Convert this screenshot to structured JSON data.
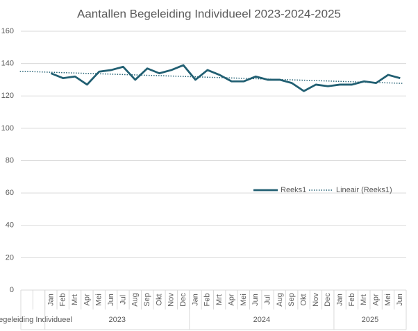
{
  "chart_data": {
    "type": "line",
    "title": "Aantallen Begeleiding Individueel 2023-2024-2025",
    "categories": [
      null,
      null,
      "Jan",
      "Feb",
      "Mrt",
      "Apr",
      "Mei",
      "Jun",
      "Jul",
      "Aug",
      "Sep",
      "Okt",
      "Nov",
      "Dec",
      "Jan",
      "Feb",
      "Mrt",
      "Apr",
      "Mei",
      "Jun",
      "Jul",
      "Aug",
      "Sep",
      "Okt",
      "Nov",
      "Dec",
      "Jan",
      "Feb",
      "Mrt",
      "Apr",
      "Mei",
      "Jun"
    ],
    "groups": [
      {
        "label": "Begeleiding Individueel",
        "count": 2
      },
      {
        "label": "2023",
        "count": 12
      },
      {
        "label": "2024",
        "count": 12
      },
      {
        "label": "2025",
        "count": 6
      }
    ],
    "series": [
      {
        "name": "Reeks1",
        "color": "#215f72",
        "values": [
          null,
          null,
          134,
          131,
          132,
          127,
          135,
          136,
          138,
          130,
          137,
          134,
          136,
          139,
          130,
          136,
          133,
          129,
          129,
          132,
          130,
          130,
          128,
          123,
          127,
          126,
          127,
          127,
          129,
          128,
          133,
          131
        ]
      }
    ],
    "trendline": {
      "name": "Lineair (Reeks1)",
      "color": "#215f72"
    },
    "ylim": [
      0,
      160
    ],
    "yticks": [
      0,
      20,
      40,
      60,
      80,
      100,
      120,
      140,
      160
    ],
    "grid": true
  }
}
